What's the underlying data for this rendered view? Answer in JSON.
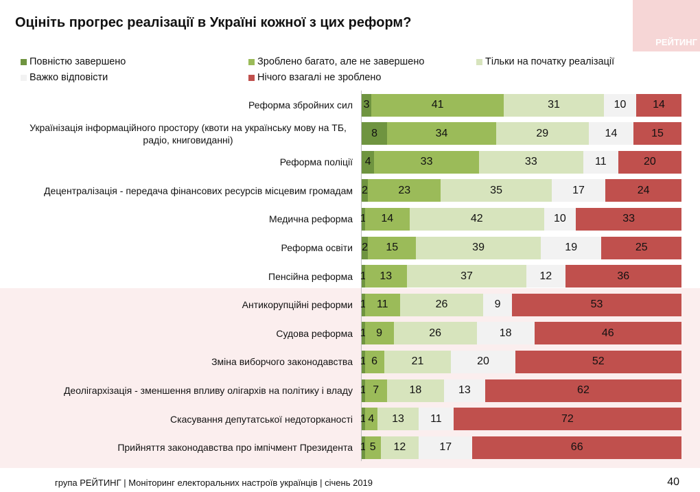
{
  "title": "Оцініть прогрес реалізації в Україні кожної з цих реформ?",
  "logo": "РЕЙТИНГ",
  "footer": "група РЕЙТИНГ |  Моніторинг електоральних настроїв українців  |  січень  2019",
  "page_number": "40",
  "chart_data": {
    "type": "bar",
    "orientation": "horizontal-stacked-100",
    "title": "Оцініть прогрес реалізації в Україні кожної з цих реформ?",
    "legend_placement": "top",
    "grid": false,
    "categories": [
      "Реформа збройних сил",
      "Українізація інформаційного простору (квоти на українську мову на ТБ, радіо, книговиданні)",
      "Реформа поліції",
      "Децентралізація - передача фінансових ресурсів місцевим громадам",
      "Медична реформа",
      "Реформа освіти",
      "Пенсійна реформа",
      "Антикорупційні реформи",
      "Судова реформа",
      "Зміна виборчого законодавства",
      "Деолігархізація - зменшення впливу олігархів на політику і владу",
      "Скасування депутатської недоторканості",
      "Прийняття законодавства про імпічмент Президента"
    ],
    "series": [
      {
        "name": "Повністю  завершено",
        "color": "#6f9440",
        "values": [
          3,
          8,
          4,
          2,
          1,
          2,
          1,
          1,
          1,
          1,
          1,
          1,
          1
        ]
      },
      {
        "name": "Зроблено багато, але не завершено",
        "color": "#9bbb59",
        "values": [
          41,
          34,
          33,
          23,
          14,
          15,
          13,
          11,
          9,
          6,
          7,
          4,
          5
        ]
      },
      {
        "name": "Тільки на початку реалізації",
        "color": "#d7e4bd",
        "values": [
          31,
          29,
          33,
          35,
          42,
          39,
          37,
          26,
          26,
          21,
          18,
          13,
          12
        ]
      },
      {
        "name": "Важко відповісти",
        "color": "#f2f2f2",
        "values": [
          10,
          14,
          11,
          17,
          10,
          19,
          12,
          9,
          18,
          20,
          13,
          11,
          17
        ]
      },
      {
        "name": "Нічого взагалі не зроблено",
        "color": "#c0504d",
        "values": [
          14,
          15,
          20,
          24,
          33,
          25,
          36,
          53,
          46,
          52,
          62,
          72,
          66
        ]
      }
    ]
  }
}
